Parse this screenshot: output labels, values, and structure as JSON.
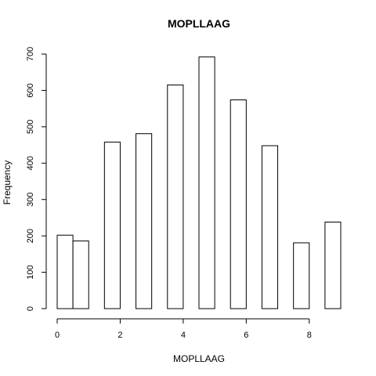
{
  "chart_data": {
    "type": "bar",
    "title": "MOPLLAAG",
    "xlabel": "MOPLLAAG",
    "ylabel": "Frequency",
    "bins": [
      {
        "x0": 0.0,
        "x1": 0.5,
        "count": 202
      },
      {
        "x0": 0.5,
        "x1": 1.0,
        "count": 186
      },
      {
        "x0": 1.0,
        "x1": 1.5,
        "count": 0
      },
      {
        "x0": 1.5,
        "x1": 2.0,
        "count": 458
      },
      {
        "x0": 2.0,
        "x1": 2.5,
        "count": 0
      },
      {
        "x0": 2.5,
        "x1": 3.0,
        "count": 481
      },
      {
        "x0": 3.0,
        "x1": 3.5,
        "count": 0
      },
      {
        "x0": 3.5,
        "x1": 4.0,
        "count": 615
      },
      {
        "x0": 4.0,
        "x1": 4.5,
        "count": 0
      },
      {
        "x0": 4.5,
        "x1": 5.0,
        "count": 692
      },
      {
        "x0": 5.0,
        "x1": 5.5,
        "count": 0
      },
      {
        "x0": 5.5,
        "x1": 6.0,
        "count": 574
      },
      {
        "x0": 6.0,
        "x1": 6.5,
        "count": 0
      },
      {
        "x0": 6.5,
        "x1": 7.0,
        "count": 448
      },
      {
        "x0": 7.0,
        "x1": 7.5,
        "count": 0
      },
      {
        "x0": 7.5,
        "x1": 8.0,
        "count": 181
      },
      {
        "x0": 8.0,
        "x1": 8.5,
        "count": 0
      },
      {
        "x0": 8.5,
        "x1": 9.0,
        "count": 238
      }
    ],
    "xlim": [
      0,
      9
    ],
    "ylim": [
      0,
      700
    ],
    "x_ticks": [
      0,
      2,
      4,
      6,
      8
    ],
    "y_ticks": [
      0,
      100,
      200,
      300,
      400,
      500,
      600,
      700
    ],
    "grid": false,
    "legend": "none"
  }
}
